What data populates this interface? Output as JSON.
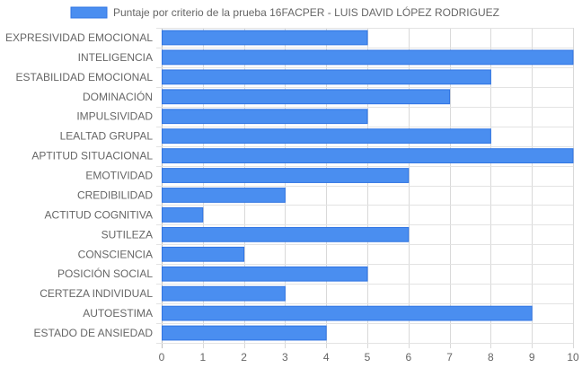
{
  "chart_data": {
    "type": "bar",
    "orientation": "horizontal",
    "categories": [
      "EXPRESIVIDAD EMOCIONAL",
      "INTELIGENCIA",
      "ESTABILIDAD EMOCIONAL",
      "DOMINACIÓN",
      "IMPULSIVIDAD",
      "LEALTAD GRUPAL",
      "APTITUD SITUACIONAL",
      "EMOTIVIDAD",
      "CREDIBILIDAD",
      "ACTITUD COGNITIVA",
      "SUTILEZA",
      "CONSCIENCIA",
      "POSICIÓN SOCIAL",
      "CERTEZA INDIVIDUAL",
      "AUTOESTIMA",
      "ESTADO DE ANSIEDAD"
    ],
    "series": [
      {
        "name": "Puntaje por criterio de la prueba 16FACPER - LUIS DAVID LÓPEZ RODRIGUEZ",
        "values": [
          5,
          10,
          8,
          7,
          5,
          8,
          10,
          6,
          3,
          1,
          6,
          2,
          5,
          3,
          9,
          4
        ],
        "fill_color": "#4a8ef0",
        "border_color": "#2f74e3"
      }
    ],
    "x_ticks": [
      "0",
      "1",
      "2",
      "3",
      "4",
      "5",
      "6",
      "7",
      "8",
      "9",
      "10"
    ],
    "xlim": [
      0,
      10
    ],
    "grid": true,
    "legend_position": "top"
  }
}
